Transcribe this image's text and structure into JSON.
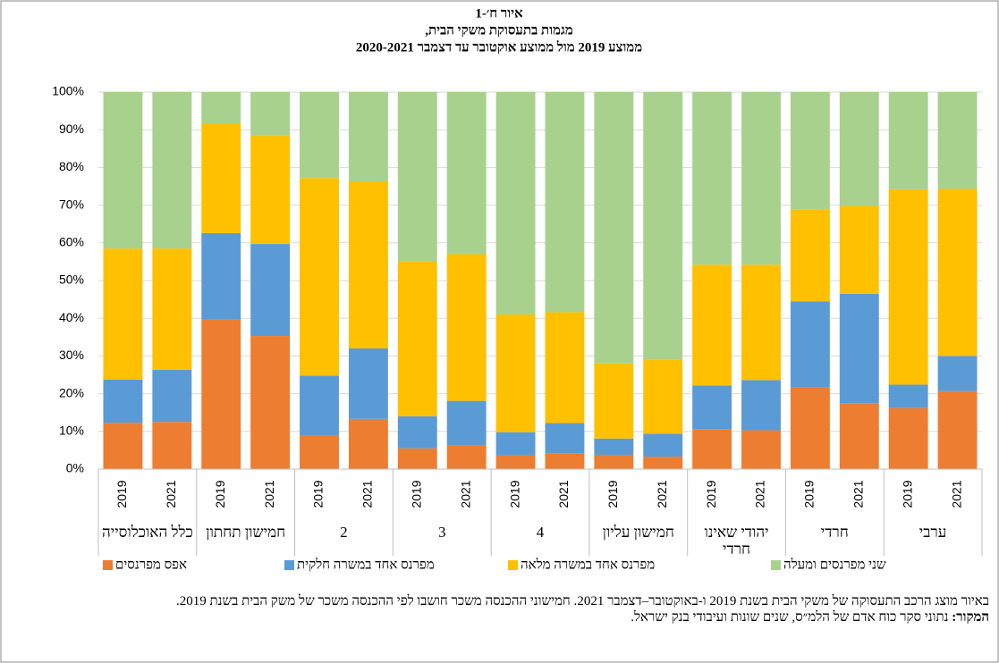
{
  "chart_data": {
    "type": "bar",
    "stacked": true,
    "title": [
      "איור ח׳-1",
      "מגמות בתעסוקת משקי הבית,",
      "ממוצע 2019 מול ממוצע אוקטובר עד דצמבר 2020-2021"
    ],
    "groups": [
      "כלל האוכלוסייה",
      "חמישון תחתון",
      "2",
      "3",
      "4",
      "חמישון עליון",
      "יהודי שאינו חרדי",
      "חרדי",
      "ערבי"
    ],
    "categories": [
      "2019",
      "2021",
      "2019",
      "2021",
      "2019",
      "2021",
      "2019",
      "2021",
      "2019",
      "2021",
      "2019",
      "2021",
      "2019",
      "2021",
      "2019",
      "2021",
      "2019",
      "2021"
    ],
    "series": [
      {
        "name": "אפס מפרנסים",
        "color": "#ed7d31",
        "values": [
          12.3,
          12.5,
          39.6,
          35.3,
          8.8,
          13.3,
          5.5,
          6.3,
          3.8,
          4.1,
          3.8,
          3.3,
          10.6,
          10.3,
          21.6,
          17.5,
          16.2,
          20.7
        ]
      },
      {
        "name": "מפרנס אחד במשרה חלקית",
        "color": "#5b9bd5",
        "values": [
          11.4,
          13.8,
          23.0,
          24.4,
          16.0,
          18.7,
          8.5,
          11.8,
          6.0,
          8.1,
          4.3,
          6.1,
          11.6,
          13.3,
          22.9,
          29.0,
          6.2,
          9.3
        ]
      },
      {
        "name": "מפרנס אחד במשרה מלאה",
        "color": "#ffc000",
        "values": [
          34.8,
          32.2,
          29.1,
          28.7,
          52.4,
          44.3,
          41.0,
          38.9,
          31.2,
          29.4,
          19.9,
          19.6,
          32.0,
          30.6,
          24.3,
          23.3,
          51.8,
          44.3
        ]
      },
      {
        "name": "שני מפרנסים ומעלה",
        "color": "#a9d18e",
        "values": [
          41.5,
          41.5,
          8.3,
          11.6,
          22.8,
          23.7,
          45.0,
          43.0,
          59.0,
          58.4,
          72.0,
          71.0,
          45.8,
          45.8,
          31.2,
          30.2,
          25.8,
          25.7
        ]
      }
    ],
    "ylim": [
      0,
      100
    ],
    "yticks": [
      {
        "value": 0,
        "label": "0%"
      },
      {
        "value": 10,
        "label": "10%"
      },
      {
        "value": 20,
        "label": "20%"
      },
      {
        "value": 30,
        "label": "30%"
      },
      {
        "value": 40,
        "label": "40%"
      },
      {
        "value": 50,
        "label": "50%"
      },
      {
        "value": 60,
        "label": "60%"
      },
      {
        "value": 70,
        "label": "70%"
      },
      {
        "value": 80,
        "label": "80%"
      },
      {
        "value": 90,
        "label": "90%"
      },
      {
        "value": 100,
        "label": "100%"
      }
    ],
    "grid": true,
    "legend": "bottom"
  },
  "notes": {
    "text": "באיור מוצג הרכב התעסוקה של משקי הבית בשנת 2019 ו-באוקטובר–דצמבר 2021. חמישוני ההכנסה משכר חושבו לפי ההכנסה משכר של משק הבית בשנת 2019.",
    "source_label": "המקור:",
    "source": "נתוני סקר כוח אדם של הלמ״ס, שנים שונות ועיבודי בנק ישראל."
  }
}
